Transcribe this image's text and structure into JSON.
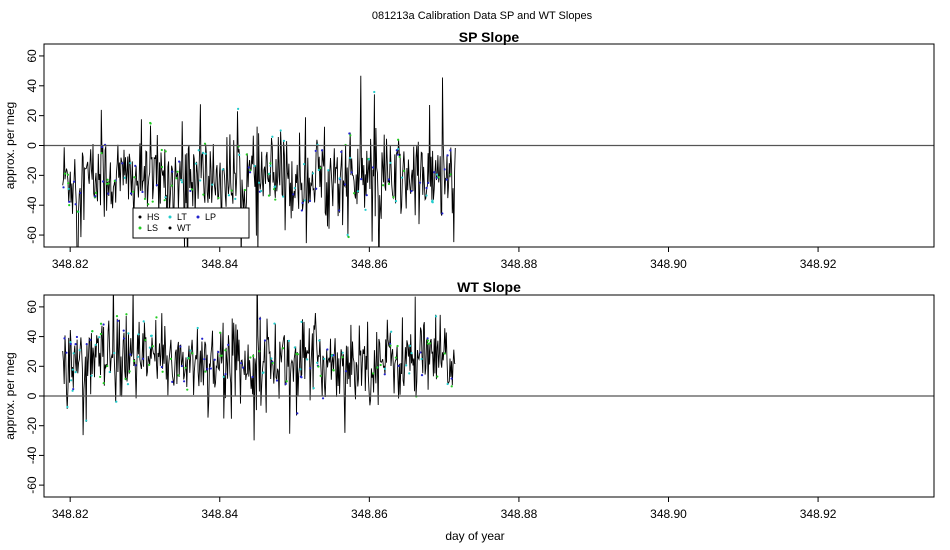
{
  "figure": {
    "suptitle": "081213a   Calibration Data SP and WT Slopes",
    "xlabel": "day of year"
  },
  "colors": {
    "HS": "#000000",
    "LS": "#22cc22",
    "LT": "#22cccc",
    "LP": "#2222cc",
    "WT": "#000000",
    "zero_line": "#555555"
  },
  "legend": {
    "placement": "lower-left",
    "entries": [
      "HS",
      "LS",
      "LT",
      "WT",
      "LP"
    ]
  },
  "chart_data": [
    {
      "type": "line",
      "title": "SP Slope",
      "xlabel": "",
      "ylabel": "approx. per meg",
      "xlim": [
        348.8165,
        348.9355
      ],
      "ylim": [
        -68,
        68
      ],
      "x_ticks": [
        "348.82",
        "348.84",
        "348.86",
        "348.88",
        "348.90",
        "348.92"
      ],
      "y_ticks": [
        "60",
        "40",
        "20",
        "0",
        "-20",
        "-40",
        "-60"
      ],
      "x_range": [
        348.819,
        348.8715
      ],
      "trace_mean": -22,
      "trace_spread": 20,
      "hline": 0,
      "series_names": [
        "HS",
        "LS",
        "LT",
        "WT",
        "LP"
      ]
    },
    {
      "type": "line",
      "title": "WT Slope",
      "xlabel": "day of year",
      "ylabel": "approx. per meg",
      "xlim": [
        348.8165,
        348.9355
      ],
      "ylim": [
        -68,
        68
      ],
      "x_ticks": [
        "348.82",
        "348.84",
        "348.86",
        "348.88",
        "348.90",
        "348.92"
      ],
      "y_ticks": [
        "60",
        "40",
        "20",
        "0",
        "-20",
        "-40",
        "-60"
      ],
      "x_range": [
        348.819,
        348.8715
      ],
      "trace_mean": 24,
      "trace_spread": 18,
      "hline": 0,
      "series_names": [
        "HS",
        "LS",
        "LT",
        "WT",
        "LP"
      ]
    }
  ]
}
